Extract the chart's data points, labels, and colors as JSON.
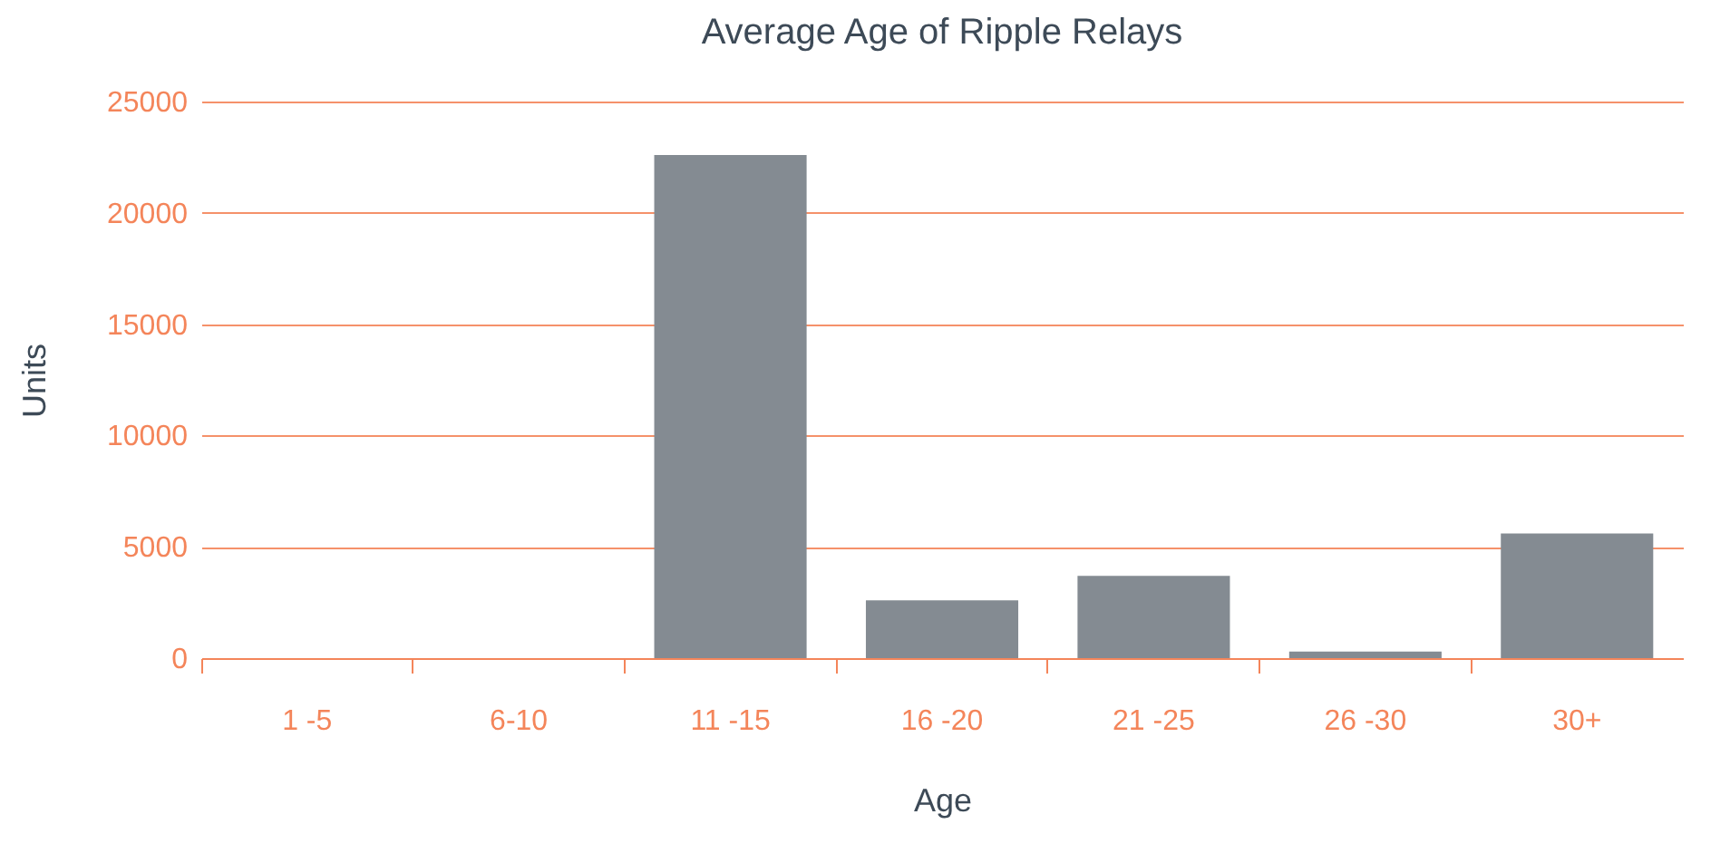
{
  "chart_data": {
    "type": "bar",
    "title": "Average Age of Ripple Relays",
    "xlabel": "Age",
    "ylabel": "Units",
    "categories": [
      "1 -5",
      "6-10",
      "11 -15",
      "16 -20",
      "21 -25",
      "26 -30",
      "30+"
    ],
    "values": [
      0,
      0,
      22600,
      2600,
      3700,
      300,
      5600
    ],
    "color": "#848b92",
    "ylim": [
      0,
      25000
    ],
    "yticks": [
      0,
      5000,
      10000,
      15000,
      20000,
      25000
    ],
    "grid": "y"
  }
}
